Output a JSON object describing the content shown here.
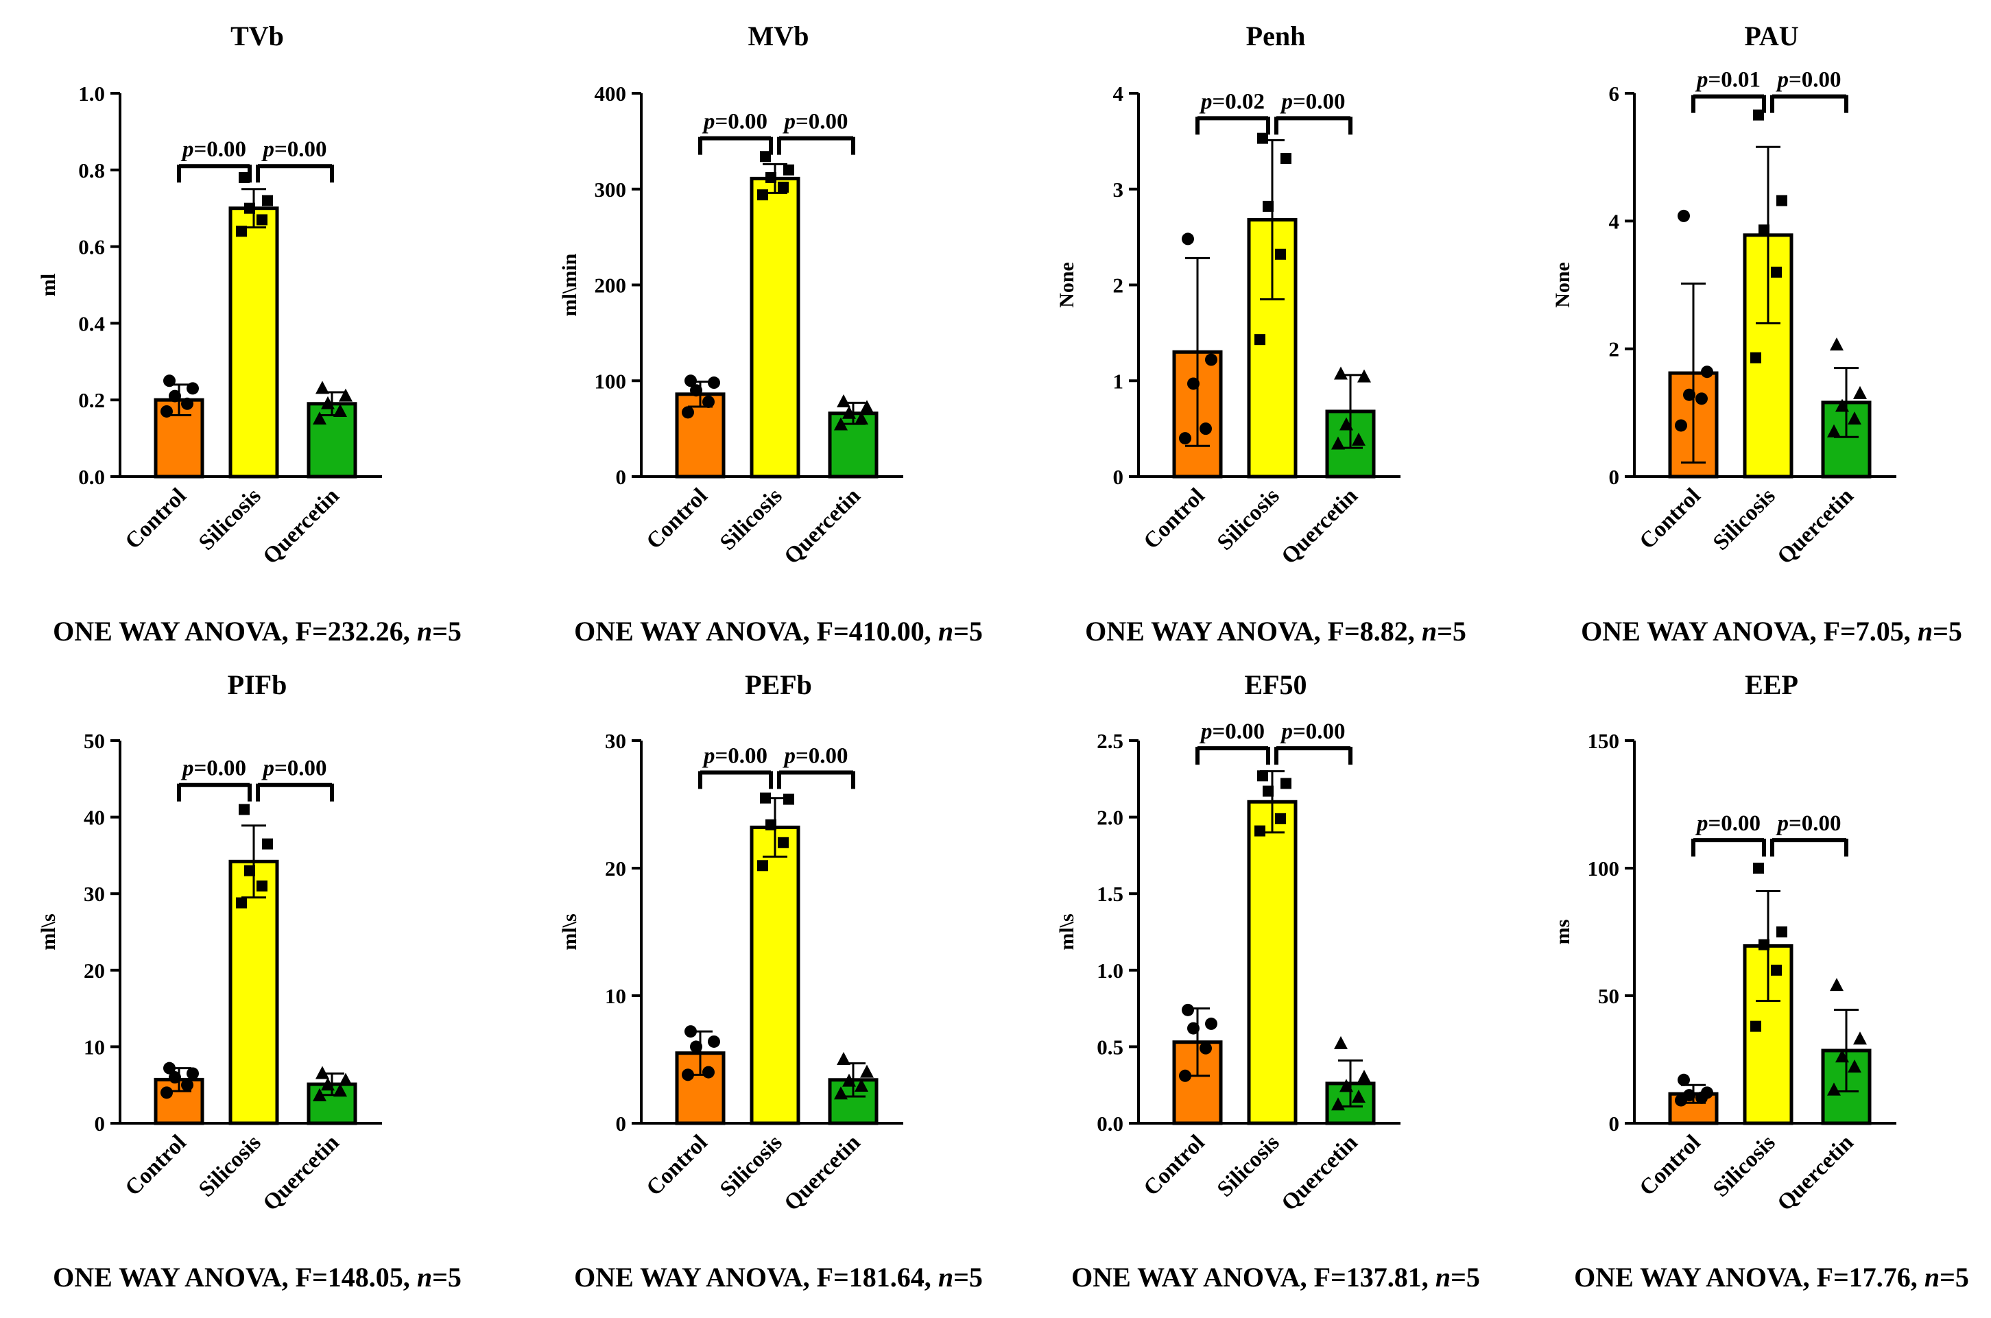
{
  "colors": {
    "control": "#FF7F00",
    "silicosis": "#FFFF00",
    "quercetin": "#12B012",
    "ink": "#000000"
  },
  "chart_data": [
    {
      "type": "bar",
      "title": "TVb",
      "ylabel": "ml",
      "categories": [
        "Control",
        "Silicosis",
        "Quercetin"
      ],
      "ylim": [
        0,
        1.0
      ],
      "yticks": [
        "0.0",
        "0.2",
        "0.4",
        "0.6",
        "0.8",
        "1.0"
      ],
      "values": [
        0.2,
        0.7,
        0.19
      ],
      "errors": [
        0.04,
        0.05,
        0.03
      ],
      "points": [
        [
          0.17,
          0.19,
          0.21,
          0.23,
          0.25
        ],
        [
          0.64,
          0.67,
          0.7,
          0.72,
          0.78
        ],
        [
          0.15,
          0.17,
          0.19,
          0.21,
          0.23
        ]
      ],
      "markers": [
        "circle",
        "square",
        "triangle"
      ],
      "significance": [
        {
          "from": 0,
          "to": 1,
          "label": "p=0.00",
          "y": 0.81
        },
        {
          "from": 1,
          "to": 2,
          "label": "p=0.00",
          "y": 0.81
        }
      ],
      "caption": {
        "prefix": "ONE WAY ANOVA, F=232.26, ",
        "n_label": "n",
        "n_value": "=5"
      }
    },
    {
      "type": "bar",
      "title": "MVb",
      "ylabel": "ml\\min",
      "categories": [
        "Control",
        "Silicosis",
        "Quercetin"
      ],
      "ylim": [
        0,
        400
      ],
      "yticks": [
        "0",
        "100",
        "200",
        "300",
        "400"
      ],
      "values": [
        86,
        311,
        66
      ],
      "errors": [
        13,
        15,
        11
      ],
      "points": [
        [
          67,
          78,
          90,
          98,
          100
        ],
        [
          294,
          302,
          312,
          320,
          334
        ],
        [
          54,
          60,
          66,
          72,
          78
        ]
      ],
      "markers": [
        "circle",
        "square",
        "triangle"
      ],
      "significance": [
        {
          "from": 0,
          "to": 1,
          "label": "p=0.00",
          "y": 353
        },
        {
          "from": 1,
          "to": 2,
          "label": "p=0.00",
          "y": 353
        }
      ],
      "caption": {
        "prefix": "ONE WAY ANOVA, F=410.00, ",
        "n_label": "n",
        "n_value": "=5"
      }
    },
    {
      "type": "bar",
      "title": "Penh",
      "ylabel": "None",
      "categories": [
        "Control",
        "Silicosis",
        "Quercetin"
      ],
      "ylim": [
        0,
        4
      ],
      "yticks": [
        "0",
        "1",
        "2",
        "3",
        "4"
      ],
      "values": [
        1.3,
        2.68,
        0.68
      ],
      "errors": [
        0.98,
        0.83,
        0.38
      ],
      "points": [
        [
          0.4,
          0.5,
          0.97,
          1.22,
          2.48
        ],
        [
          1.43,
          2.32,
          2.82,
          3.32,
          3.53
        ],
        [
          0.34,
          0.38,
          0.54,
          1.04,
          1.07
        ]
      ],
      "markers": [
        "circle",
        "square",
        "triangle"
      ],
      "significance": [
        {
          "from": 0,
          "to": 1,
          "label": "p=0.02",
          "y": 3.74
        },
        {
          "from": 1,
          "to": 2,
          "label": "p=0.00",
          "y": 3.74
        }
      ],
      "caption": {
        "prefix": "ONE WAY ANOVA, F=8.82, ",
        "n_label": "n",
        "n_value": "=5"
      }
    },
    {
      "type": "bar",
      "title": "PAU",
      "ylabel": "None",
      "categories": [
        "Control",
        "Silicosis",
        "Quercetin"
      ],
      "ylim": [
        0,
        6
      ],
      "yticks": [
        "0",
        "2",
        "4",
        "6"
      ],
      "values": [
        1.62,
        3.78,
        1.16
      ],
      "errors": [
        1.4,
        1.38,
        0.54
      ],
      "points": [
        [
          0.8,
          1.22,
          1.28,
          1.64,
          4.08
        ],
        [
          1.86,
          3.2,
          3.86,
          4.32,
          5.66
        ],
        [
          0.7,
          0.9,
          1.1,
          1.3,
          2.06
        ]
      ],
      "markers": [
        "circle",
        "square",
        "triangle"
      ],
      "significance": [
        {
          "from": 0,
          "to": 1,
          "label": "p=0.01",
          "y": 5.95
        },
        {
          "from": 1,
          "to": 2,
          "label": "p=0.00",
          "y": 5.95
        }
      ],
      "caption": {
        "prefix": "ONE WAY ANOVA, F=7.05, ",
        "n_label": "n",
        "n_value": "=5"
      }
    },
    {
      "type": "bar",
      "title": "PIFb",
      "ylabel": "ml\\s",
      "categories": [
        "Control",
        "Silicosis",
        "Quercetin"
      ],
      "ylim": [
        0,
        50
      ],
      "yticks": [
        "0",
        "10",
        "20",
        "30",
        "40",
        "50"
      ],
      "values": [
        5.7,
        34.2,
        5.1
      ],
      "errors": [
        1.5,
        4.7,
        1.4
      ],
      "points": [
        [
          4.0,
          5.0,
          6.0,
          6.5,
          7.2
        ],
        [
          28.8,
          31.0,
          33.0,
          36.5,
          41.0
        ],
        [
          3.6,
          4.2,
          5.0,
          5.6,
          6.5
        ]
      ],
      "markers": [
        "circle",
        "square",
        "triangle"
      ],
      "significance": [
        {
          "from": 0,
          "to": 1,
          "label": "p=0.00",
          "y": 44.2
        },
        {
          "from": 1,
          "to": 2,
          "label": "p=0.00",
          "y": 44.2
        }
      ],
      "caption": {
        "prefix": "ONE WAY ANOVA, F=148.05, ",
        "n_label": "n",
        "n_value": "=5"
      }
    },
    {
      "type": "bar",
      "title": "PEFb",
      "ylabel": "ml\\s",
      "categories": [
        "Control",
        "Silicosis",
        "Quercetin"
      ],
      "ylim": [
        0,
        30
      ],
      "yticks": [
        "0",
        "10",
        "20",
        "30"
      ],
      "values": [
        5.5,
        23.2,
        3.4
      ],
      "errors": [
        1.7,
        2.3,
        1.3
      ],
      "points": [
        [
          3.8,
          4.0,
          6.0,
          6.4,
          7.2
        ],
        [
          20.2,
          22.0,
          23.4,
          25.4,
          25.5
        ],
        [
          2.3,
          2.9,
          3.3,
          4.0,
          5.0
        ]
      ],
      "markers": [
        "circle",
        "square",
        "triangle"
      ],
      "significance": [
        {
          "from": 0,
          "to": 1,
          "label": "p=0.00",
          "y": 27.5
        },
        {
          "from": 1,
          "to": 2,
          "label": "p=0.00",
          "y": 27.5
        }
      ],
      "caption": {
        "prefix": "ONE WAY ANOVA, F=181.64, ",
        "n_label": "n",
        "n_value": "=5"
      }
    },
    {
      "type": "bar",
      "title": "EF50",
      "ylabel": "ml\\s",
      "categories": [
        "Control",
        "Silicosis",
        "Quercetin"
      ],
      "ylim": [
        0,
        2.5
      ],
      "yticks": [
        "0.0",
        "0.5",
        "1.0",
        "1.5",
        "2.0",
        "2.5"
      ],
      "values": [
        0.53,
        2.1,
        0.26
      ],
      "errors": [
        0.22,
        0.2,
        0.15
      ],
      "points": [
        [
          0.31,
          0.49,
          0.62,
          0.65,
          0.74
        ],
        [
          1.91,
          1.99,
          2.17,
          2.22,
          2.27
        ],
        [
          0.12,
          0.17,
          0.24,
          0.3,
          0.52
        ]
      ],
      "markers": [
        "circle",
        "square",
        "triangle"
      ],
      "significance": [
        {
          "from": 0,
          "to": 1,
          "label": "p=0.00",
          "y": 2.45
        },
        {
          "from": 1,
          "to": 2,
          "label": "p=0.00",
          "y": 2.45
        }
      ],
      "caption": {
        "prefix": "ONE WAY ANOVA, F=137.81, ",
        "n_label": "n",
        "n_value": "=5"
      }
    },
    {
      "type": "bar",
      "title": "EEP",
      "ylabel": "ms",
      "categories": [
        "Control",
        "Silicosis",
        "Quercetin"
      ],
      "ylim": [
        0,
        150
      ],
      "yticks": [
        "0",
        "50",
        "100",
        "150"
      ],
      "values": [
        11.5,
        69.5,
        28.5
      ],
      "errors": [
        3.5,
        21.5,
        16.0
      ],
      "points": [
        [
          9,
          10,
          11,
          12,
          17
        ],
        [
          38,
          60,
          70,
          75,
          100
        ],
        [
          13,
          22,
          26,
          33,
          54
        ]
      ],
      "markers": [
        "circle",
        "square",
        "triangle"
      ],
      "significance": [
        {
          "from": 0,
          "to": 1,
          "label": "p=0.00",
          "y": 111
        },
        {
          "from": 1,
          "to": 2,
          "label": "p=0.00",
          "y": 111
        }
      ],
      "caption": {
        "prefix": "ONE WAY ANOVA, F=17.76, ",
        "n_label": "n",
        "n_value": "=5"
      }
    }
  ]
}
